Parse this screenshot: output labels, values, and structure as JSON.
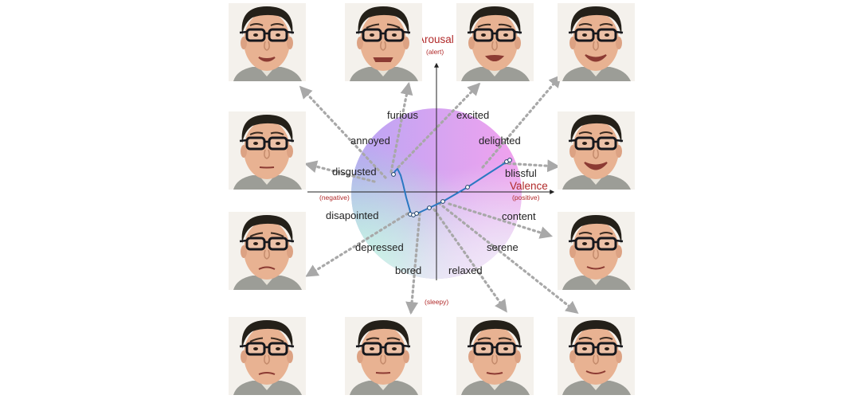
{
  "axes": {
    "arousal": "Arousal",
    "alert": "(alert)",
    "sleepy": "(sleepy)",
    "valence": "Valence",
    "negative": "(negative)",
    "positive": "(positive)"
  },
  "emotions": {
    "furious": "furious",
    "excited": "excited",
    "annoyed": "annoyed",
    "delighted": "delighted",
    "disgusted": "disgusted",
    "blissful": "blissful",
    "disapointed": "disapointed",
    "content": "content",
    "depressed": "depressed",
    "serene": "serene",
    "bored": "bored",
    "relaxed": "relaxed"
  },
  "colors": {
    "axis_label": "#b12a2a",
    "trajectory": "#2a78c2",
    "arrow": "#a8a8a8",
    "wheel_top_left": "#b9a6f4",
    "wheel_top_right": "#f2a2ee",
    "wheel_bottom_left": "#9cf0ce",
    "wheel_bottom_right": "#e2d6f2"
  },
  "portraits": [
    {
      "id": "neutral-open-mouth"
    },
    {
      "id": "grimace"
    },
    {
      "id": "grimace-open"
    },
    {
      "id": "smile-teeth"
    },
    {
      "id": "neutral-closed"
    },
    {
      "id": "big-smile"
    },
    {
      "id": "frown"
    },
    {
      "id": "slight-smile"
    },
    {
      "id": "frown-closed"
    },
    {
      "id": "neutral"
    },
    {
      "id": "neutral-slight"
    },
    {
      "id": "calm-smile"
    }
  ]
}
